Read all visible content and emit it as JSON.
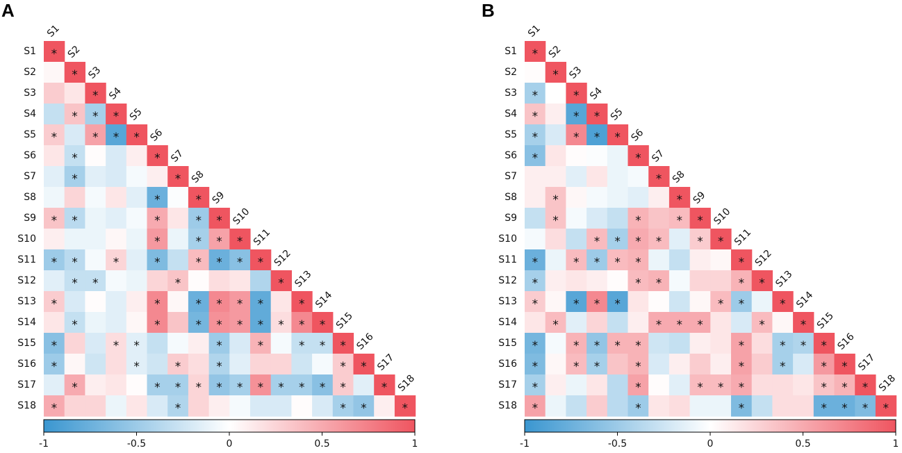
{
  "chart_data": [
    {
      "type": "heatmap",
      "panel": "A",
      "shape": "lower-triangular",
      "labels": [
        "S1",
        "S2",
        "S3",
        "S4",
        "S5",
        "S6",
        "S7",
        "S8",
        "S9",
        "S10",
        "S11",
        "S12",
        "S13",
        "S14",
        "S15",
        "S16",
        "S17",
        "S18"
      ],
      "values": [
        [
          1
        ],
        [
          0.05,
          1
        ],
        [
          0.3,
          0.15,
          1
        ],
        [
          -0.3,
          0.35,
          -0.45,
          1
        ],
        [
          0.3,
          -0.2,
          0.55,
          -0.85,
          1
        ],
        [
          0.15,
          -0.3,
          0.02,
          -0.2,
          0.1,
          1
        ],
        [
          -0.15,
          -0.45,
          -0.15,
          -0.2,
          -0.05,
          0.1,
          1
        ],
        [
          -0.08,
          0.25,
          -0.05,
          0.15,
          -0.15,
          -0.75,
          -0.02,
          1
        ],
        [
          0.35,
          -0.35,
          -0.1,
          -0.15,
          -0.05,
          0.5,
          0.15,
          -0.5,
          1
        ],
        [
          0.1,
          -0.1,
          -0.1,
          0.05,
          -0.1,
          0.6,
          -0.1,
          -0.45,
          0.55,
          1
        ],
        [
          -0.5,
          -0.35,
          -0.05,
          0.25,
          -0.15,
          -0.65,
          -0.3,
          0.4,
          -0.75,
          -0.6,
          1
        ],
        [
          -0.15,
          -0.3,
          -0.3,
          -0.05,
          -0.1,
          0.25,
          0.35,
          0.02,
          0.2,
          0.15,
          -0.4,
          1
        ],
        [
          0.3,
          -0.2,
          0.02,
          -0.15,
          0.1,
          0.7,
          0.05,
          -0.75,
          0.7,
          0.6,
          -0.8,
          0.15,
          1
        ],
        [
          0.15,
          -0.3,
          -0.1,
          -0.15,
          0.05,
          0.7,
          0.35,
          -0.7,
          0.65,
          0.6,
          -0.8,
          0.2,
          0.7,
          1
        ],
        [
          -0.6,
          0.25,
          -0.2,
          0.2,
          -0.15,
          -0.3,
          -0.05,
          0.1,
          -0.5,
          -0.2,
          0.45,
          -0.05,
          -0.3,
          -0.3,
          1
        ],
        [
          -0.5,
          0.05,
          -0.25,
          0.2,
          -0.15,
          -0.25,
          0.3,
          0.2,
          -0.4,
          -0.15,
          0.25,
          0.25,
          -0.25,
          -0.05,
          0.3,
          1
        ],
        [
          -0.15,
          0.5,
          0.1,
          0.15,
          0.02,
          -0.45,
          -0.45,
          0.25,
          -0.55,
          -0.45,
          0.65,
          -0.45,
          -0.45,
          -0.6,
          0.3,
          -0.15,
          1
        ],
        [
          0.5,
          0.25,
          0.25,
          -0.1,
          0.15,
          -0.2,
          -0.4,
          0.25,
          0.1,
          -0.05,
          -0.2,
          -0.2,
          0.02,
          -0.2,
          -0.45,
          -0.55,
          0.1,
          1
        ]
      ],
      "significant": [
        [
          1
        ],
        [
          0,
          1
        ],
        [
          0,
          0,
          1
        ],
        [
          0,
          1,
          1,
          1
        ],
        [
          1,
          0,
          1,
          1,
          1
        ],
        [
          0,
          1,
          0,
          0,
          0,
          1
        ],
        [
          0,
          1,
          0,
          0,
          0,
          0,
          1
        ],
        [
          0,
          0,
          0,
          0,
          0,
          1,
          0,
          1
        ],
        [
          1,
          1,
          0,
          0,
          0,
          1,
          0,
          1,
          1
        ],
        [
          0,
          0,
          0,
          0,
          0,
          1,
          0,
          1,
          1,
          1
        ],
        [
          1,
          1,
          0,
          1,
          0,
          1,
          0,
          1,
          1,
          1,
          1
        ],
        [
          0,
          1,
          1,
          0,
          0,
          0,
          1,
          0,
          0,
          0,
          0,
          1
        ],
        [
          1,
          0,
          0,
          0,
          0,
          1,
          0,
          1,
          1,
          1,
          1,
          0,
          1
        ],
        [
          0,
          1,
          0,
          0,
          0,
          1,
          0,
          1,
          1,
          1,
          1,
          1,
          1,
          1
        ],
        [
          1,
          0,
          0,
          1,
          1,
          0,
          0,
          0,
          1,
          0,
          1,
          0,
          1,
          1,
          1
        ],
        [
          1,
          0,
          0,
          0,
          1,
          0,
          1,
          0,
          1,
          0,
          0,
          0,
          0,
          0,
          1,
          1
        ],
        [
          0,
          1,
          0,
          0,
          0,
          1,
          1,
          1,
          1,
          1,
          1,
          1,
          1,
          1,
          1,
          0,
          1
        ],
        [
          1,
          0,
          0,
          0,
          0,
          0,
          1,
          0,
          0,
          0,
          0,
          0,
          0,
          0,
          1,
          1,
          0,
          1
        ]
      ],
      "colorbar": {
        "min": -1,
        "max": 1,
        "ticks": [
          "-1",
          "-0.5",
          "0",
          "0.5",
          "1"
        ]
      }
    },
    {
      "type": "heatmap",
      "panel": "B",
      "shape": "lower-triangular",
      "labels": [
        "S1",
        "S2",
        "S3",
        "S4",
        "S5",
        "S6",
        "S7",
        "S8",
        "S9",
        "S10",
        "S11",
        "S12",
        "S13",
        "S14",
        "S15",
        "S16",
        "S17",
        "S18"
      ],
      "values": [
        [
          1
        ],
        [
          0.02,
          1
        ],
        [
          -0.45,
          0.0,
          1
        ],
        [
          0.35,
          0.1,
          -0.85,
          1
        ],
        [
          -0.45,
          -0.2,
          0.7,
          -0.9,
          1
        ],
        [
          -0.6,
          0.15,
          0.02,
          -0.02,
          -0.1,
          1
        ],
        [
          0.1,
          0.1,
          -0.15,
          0.15,
          -0.1,
          -0.05,
          1
        ],
        [
          0.1,
          0.35,
          0.05,
          -0.05,
          -0.1,
          -0.15,
          0.1,
          1
        ],
        [
          -0.3,
          0.35,
          -0.05,
          -0.2,
          -0.3,
          0.45,
          0.35,
          0.4,
          1
        ],
        [
          -0.05,
          0.2,
          -0.3,
          0.4,
          -0.45,
          0.5,
          0.4,
          -0.15,
          0.3,
          1
        ],
        [
          -0.75,
          -0.1,
          0.4,
          -0.5,
          0.4,
          0.45,
          -0.1,
          -0.3,
          0.1,
          0.05,
          1
        ],
        [
          -0.45,
          0.1,
          0.15,
          0.1,
          0.02,
          0.4,
          0.45,
          -0.05,
          0.25,
          0.25,
          0.45,
          1
        ],
        [
          0.3,
          0.05,
          -0.85,
          0.7,
          -0.85,
          0.15,
          0.02,
          -0.25,
          0.05,
          0.4,
          -0.5,
          -0.1,
          1
        ],
        [
          0.15,
          0.4,
          -0.15,
          0.25,
          -0.3,
          0.1,
          0.5,
          0.5,
          0.5,
          0.15,
          -0.2,
          0.4,
          0.05,
          1
        ],
        [
          -0.7,
          -0.05,
          0.45,
          -0.55,
          0.45,
          0.45,
          -0.25,
          -0.3,
          0.1,
          0.15,
          0.55,
          0.2,
          -0.45,
          -0.4,
          1
        ],
        [
          -0.65,
          0.05,
          0.4,
          -0.45,
          0.35,
          0.45,
          -0.2,
          0.1,
          0.3,
          0.1,
          0.55,
          0.3,
          -0.45,
          -0.2,
          0.6,
          1
        ],
        [
          -0.45,
          0.1,
          -0.1,
          0.15,
          -0.35,
          0.55,
          0.02,
          -0.15,
          0.4,
          0.4,
          0.5,
          0.2,
          0.2,
          0.15,
          0.35,
          0.45,
          1
        ],
        [
          0.55,
          -0.1,
          -0.3,
          0.3,
          -0.35,
          -0.5,
          0.15,
          0.2,
          -0.1,
          -0.1,
          -0.65,
          -0.3,
          0.2,
          0.2,
          -0.75,
          -0.75,
          -0.65,
          1
        ]
      ],
      "significant": [
        [
          1
        ],
        [
          0,
          1
        ],
        [
          1,
          0,
          1
        ],
        [
          1,
          0,
          1,
          1
        ],
        [
          1,
          0,
          1,
          1,
          1
        ],
        [
          1,
          0,
          0,
          0,
          0,
          1
        ],
        [
          0,
          0,
          0,
          0,
          0,
          0,
          1
        ],
        [
          0,
          1,
          0,
          0,
          0,
          0,
          0,
          1
        ],
        [
          0,
          1,
          0,
          0,
          0,
          1,
          0,
          1,
          1
        ],
        [
          0,
          0,
          0,
          1,
          1,
          1,
          1,
          0,
          1,
          1
        ],
        [
          1,
          0,
          1,
          1,
          1,
          1,
          0,
          0,
          0,
          0,
          1
        ],
        [
          1,
          0,
          0,
          0,
          0,
          1,
          1,
          0,
          0,
          0,
          1,
          1
        ],
        [
          1,
          0,
          1,
          1,
          1,
          0,
          0,
          0,
          0,
          1,
          1,
          0,
          1
        ],
        [
          0,
          1,
          0,
          0,
          0,
          0,
          1,
          1,
          1,
          0,
          0,
          1,
          0,
          1
        ],
        [
          1,
          0,
          1,
          1,
          1,
          1,
          0,
          0,
          0,
          0,
          1,
          0,
          1,
          1,
          1
        ],
        [
          1,
          0,
          1,
          1,
          0,
          1,
          0,
          0,
          0,
          0,
          1,
          0,
          1,
          0,
          1,
          1
        ],
        [
          1,
          0,
          0,
          0,
          0,
          1,
          0,
          0,
          1,
          1,
          1,
          0,
          0,
          0,
          1,
          1,
          1
        ],
        [
          1,
          0,
          0,
          0,
          0,
          1,
          0,
          0,
          0,
          0,
          1,
          0,
          0,
          0,
          1,
          1,
          1,
          1
        ]
      ],
      "colorbar": {
        "min": -1,
        "max": 1,
        "ticks": [
          "-1",
          "-0.5",
          "0",
          "0.5",
          "1"
        ]
      }
    }
  ],
  "panel_labels": [
    "A",
    "B"
  ],
  "significance_marker": "*",
  "colors": {
    "negative": "#3a96d0",
    "neutral": "#ffffff",
    "positive": "#ef5560"
  }
}
